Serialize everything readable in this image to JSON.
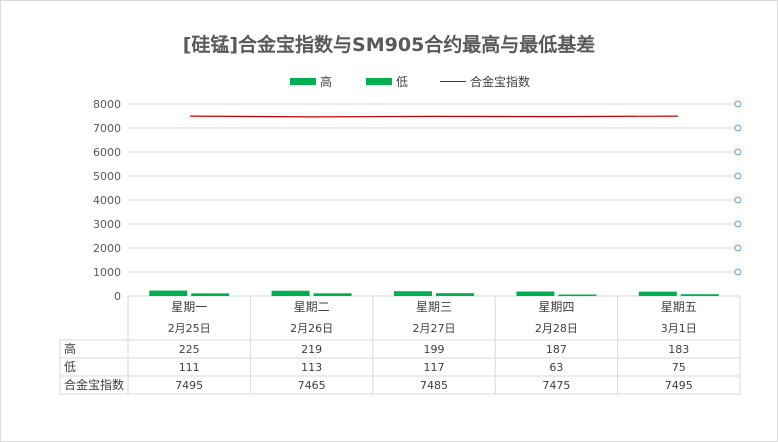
{
  "chart_data": {
    "type": "bar",
    "title": "[硅锰]合金宝指数与SM905合约最高与最低基差",
    "categories_top": [
      "星期一",
      "星期二",
      "星期三",
      "星期四",
      "星期五"
    ],
    "categories_bottom": [
      "2月25日",
      "2月26日",
      "2月27日",
      "2月28日",
      "3月1日"
    ],
    "series": [
      {
        "name": "高",
        "kind": "bar",
        "color": "#00b050",
        "values": [
          225,
          219,
          199,
          187,
          183
        ]
      },
      {
        "name": "低",
        "kind": "bar",
        "color": "#00b050",
        "values": [
          111,
          113,
          117,
          63,
          75
        ]
      },
      {
        "name": "合金宝指数",
        "kind": "line",
        "color": "#c00000",
        "values": [
          7495,
          7465,
          7485,
          7475,
          7495
        ]
      }
    ],
    "y_ticks": [
      "0",
      "1000",
      "2000",
      "3000",
      "4000",
      "5000",
      "6000",
      "7000",
      "8000"
    ],
    "ylim": [
      0,
      8000
    ],
    "grid": true,
    "legend_position": "top",
    "secondary_axis": "right, circle markers, no labels",
    "data_table": true
  }
}
